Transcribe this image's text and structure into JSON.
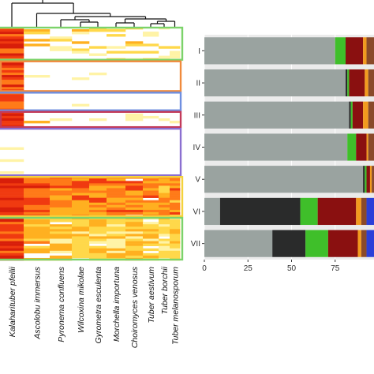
{
  "chart_data": [
    {
      "type": "heatmap",
      "title": "",
      "columns": [
        "Kalaharituber pfeilii",
        "Ascolobu immersus",
        "Pyronema confluens",
        "Wilcoxina mikolae",
        "Gyrometra esculenta",
        "Morchella importuna",
        "Choiromyces venosus",
        "Tuber aestivum",
        "Tuber borchii",
        "Tuber melanosporum"
      ],
      "clusters": [
        {
          "name": "cluster-1",
          "box_color": "#7cd36a",
          "rows": 14
        },
        {
          "name": "cluster-2",
          "box_color": "#f08a3c",
          "rows": 13
        },
        {
          "name": "cluster-3",
          "box_color": "#6f8fe0",
          "rows": 8
        },
        {
          "name": "cluster-4",
          "box_color": "#c33a5a",
          "rows": 7
        },
        {
          "name": "cluster-5",
          "box_color": "#8b6fd0",
          "rows": 20
        },
        {
          "name": "cluster-6",
          "box_color": "#f4d23c",
          "rows": 17
        },
        {
          "name": "cluster-7",
          "box_color": "#7cd36a",
          "rows": 18
        }
      ],
      "color_scale": [
        "#ffffff",
        "#fff3a6",
        "#ffd84a",
        "#ffb020",
        "#ff7a18",
        "#f03a10",
        "#d81e0a"
      ]
    },
    {
      "type": "bar",
      "orientation": "horizontal",
      "stacked": true,
      "categories": [
        "I",
        "II",
        "III",
        "IV",
        "V",
        "VI",
        "VII"
      ],
      "xlim": [
        0,
        100
      ],
      "xticks": [
        0,
        25,
        50,
        75
      ],
      "xlabel": "",
      "ylabel": "",
      "series": [
        {
          "color": "#9aa3a0",
          "values": [
            75,
            81,
            83,
            82,
            91,
            9,
            39
          ]
        },
        {
          "color": "#2a2b2b",
          "values": [
            0,
            1,
            1,
            0,
            1,
            46,
            19
          ]
        },
        {
          "color": "#3fbf2a",
          "values": [
            6,
            1,
            1,
            5,
            1,
            10,
            13
          ]
        },
        {
          "color": "#8a1010",
          "values": [
            10,
            9,
            6,
            6,
            2,
            22,
            17
          ]
        },
        {
          "color": "#f29a1e",
          "values": [
            2,
            2,
            3,
            1,
            1,
            3,
            2
          ]
        },
        {
          "color": "#8a4a2a",
          "values": [
            7,
            6,
            6,
            6,
            4,
            3,
            3
          ]
        },
        {
          "color": "#2b3fd8",
          "values": [
            0,
            0,
            0,
            0,
            0,
            7,
            7
          ]
        }
      ]
    }
  ]
}
